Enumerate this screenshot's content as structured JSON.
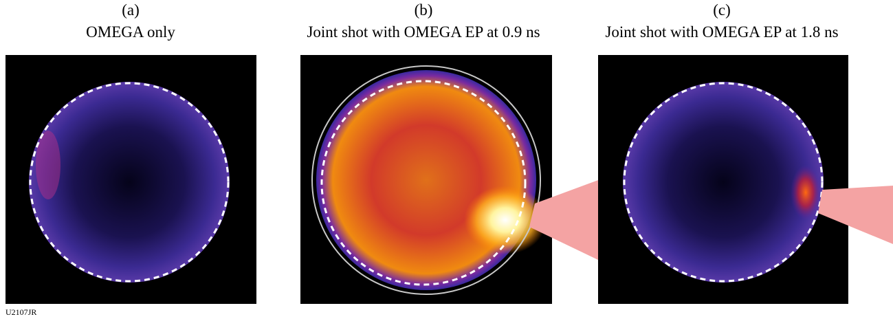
{
  "panels": [
    {
      "label": "(a)",
      "caption": "OMEGA only"
    },
    {
      "label": "(b)",
      "caption": "Joint shot with OMEGA EP at 0.9 ns"
    },
    {
      "label": "(c)",
      "caption": "Joint shot with OMEGA EP at 1.8 ns"
    }
  ],
  "figure_id": "U2107JR"
}
